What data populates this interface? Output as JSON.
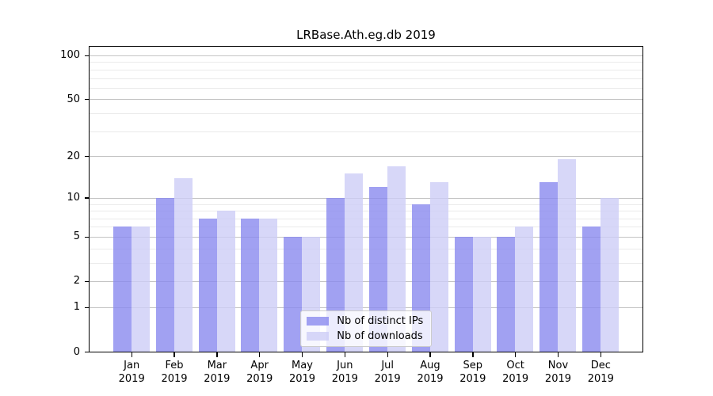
{
  "title": "LRBase.Ath.eg.db 2019",
  "chart_data": {
    "type": "bar",
    "y_scale": "log1p",
    "title": "LRBase.Ath.eg.db 2019",
    "xlabel": "",
    "ylabel": "",
    "months": [
      "Jan",
      "Feb",
      "Mar",
      "Apr",
      "May",
      "Jun",
      "Jul",
      "Aug",
      "Sep",
      "Oct",
      "Nov",
      "Dec"
    ],
    "year": "2019",
    "series": [
      {
        "name": "Nb of distinct IPs",
        "color": "#8989ef",
        "alpha": 0.8,
        "values": [
          6,
          10,
          7,
          7,
          5,
          10,
          12,
          9,
          5,
          5,
          13,
          6
        ]
      },
      {
        "name": "Nb of downloads",
        "color": "#cdcdf6",
        "alpha": 0.8,
        "values": [
          6,
          14,
          8,
          7,
          5,
          15,
          17,
          13,
          5,
          6,
          19,
          10
        ]
      }
    ],
    "y_major_ticks": [
      0,
      1,
      2,
      5,
      10,
      20,
      50,
      100
    ],
    "y_minor_ticks": [
      3,
      4,
      6,
      7,
      8,
      9,
      30,
      40,
      60,
      70,
      80,
      90
    ],
    "ylim": [
      0,
      115
    ],
    "grid": true,
    "legend_position": "lower center"
  }
}
